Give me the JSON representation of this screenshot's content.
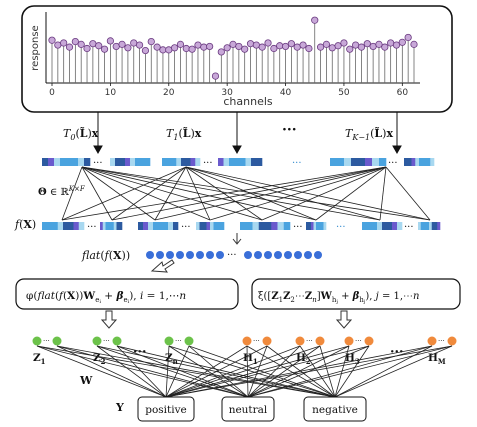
{
  "stem_plot": {
    "ylabel": "response",
    "xlabel": "channels",
    "x_ticks": [
      "0",
      "10",
      "20",
      "30",
      "40",
      "50",
      "60"
    ],
    "colors": {
      "marker_fill": "#c8a8d8",
      "marker_stroke": "#6a3a80",
      "stem": "#666666"
    },
    "values": [
      0.62,
      0.55,
      0.58,
      0.52,
      0.6,
      0.56,
      0.5,
      0.57,
      0.54,
      0.49,
      0.61,
      0.53,
      0.56,
      0.51,
      0.58,
      0.55,
      0.47,
      0.6,
      0.52,
      0.48,
      0.48,
      0.51,
      0.56,
      0.5,
      0.49,
      0.55,
      0.52,
      0.53,
      0.1,
      0.45,
      0.51,
      0.56,
      0.53,
      0.49,
      0.57,
      0.55,
      0.52,
      0.58,
      0.5,
      0.54,
      0.53,
      0.57,
      0.52,
      0.55,
      0.5,
      0.91,
      0.52,
      0.56,
      0.51,
      0.54,
      0.58,
      0.49,
      0.55,
      0.52,
      0.57,
      0.53,
      0.56,
      0.52,
      0.58,
      0.55,
      0.59,
      0.66,
      0.56
    ]
  },
  "filters": [
    {
      "label": "T_0(L̃)x"
    },
    {
      "label": "T_1(L̃)x"
    },
    {
      "label": "T_{K−1}(L̃)x"
    }
  ],
  "labels": {
    "ellipsis": "···",
    "theta": "Θ ∈ ℝ^{K×F}",
    "fx": "f(X)",
    "flat": "flat(f(X))",
    "phi_box": "φ(flat(f(X))W_{e_i} + β_{e_i}), i = 1,⋯n",
    "xi_box": "ξ([Z₁Z₂⋯Zₙ]W_{h_j} + β_{h_j}), j = 1,⋯n",
    "W": "W",
    "Y": "Y"
  },
  "z_nodes": [
    "Z₁",
    "Z₂",
    "Zₙ"
  ],
  "h_nodes": [
    "H₁",
    "H₂",
    "H₃",
    "H_M"
  ],
  "outputs": [
    "positive",
    "neutral",
    "negative"
  ],
  "colors": {
    "green": "#6cc24a",
    "orange": "#f08a3c",
    "blue_node": "#3a6fd8",
    "strip_dark": "#2c5aa0",
    "strip_mid": "#4aa3df",
    "strip_light": "#a8d8f0",
    "strip_purple": "#6a5acd"
  }
}
